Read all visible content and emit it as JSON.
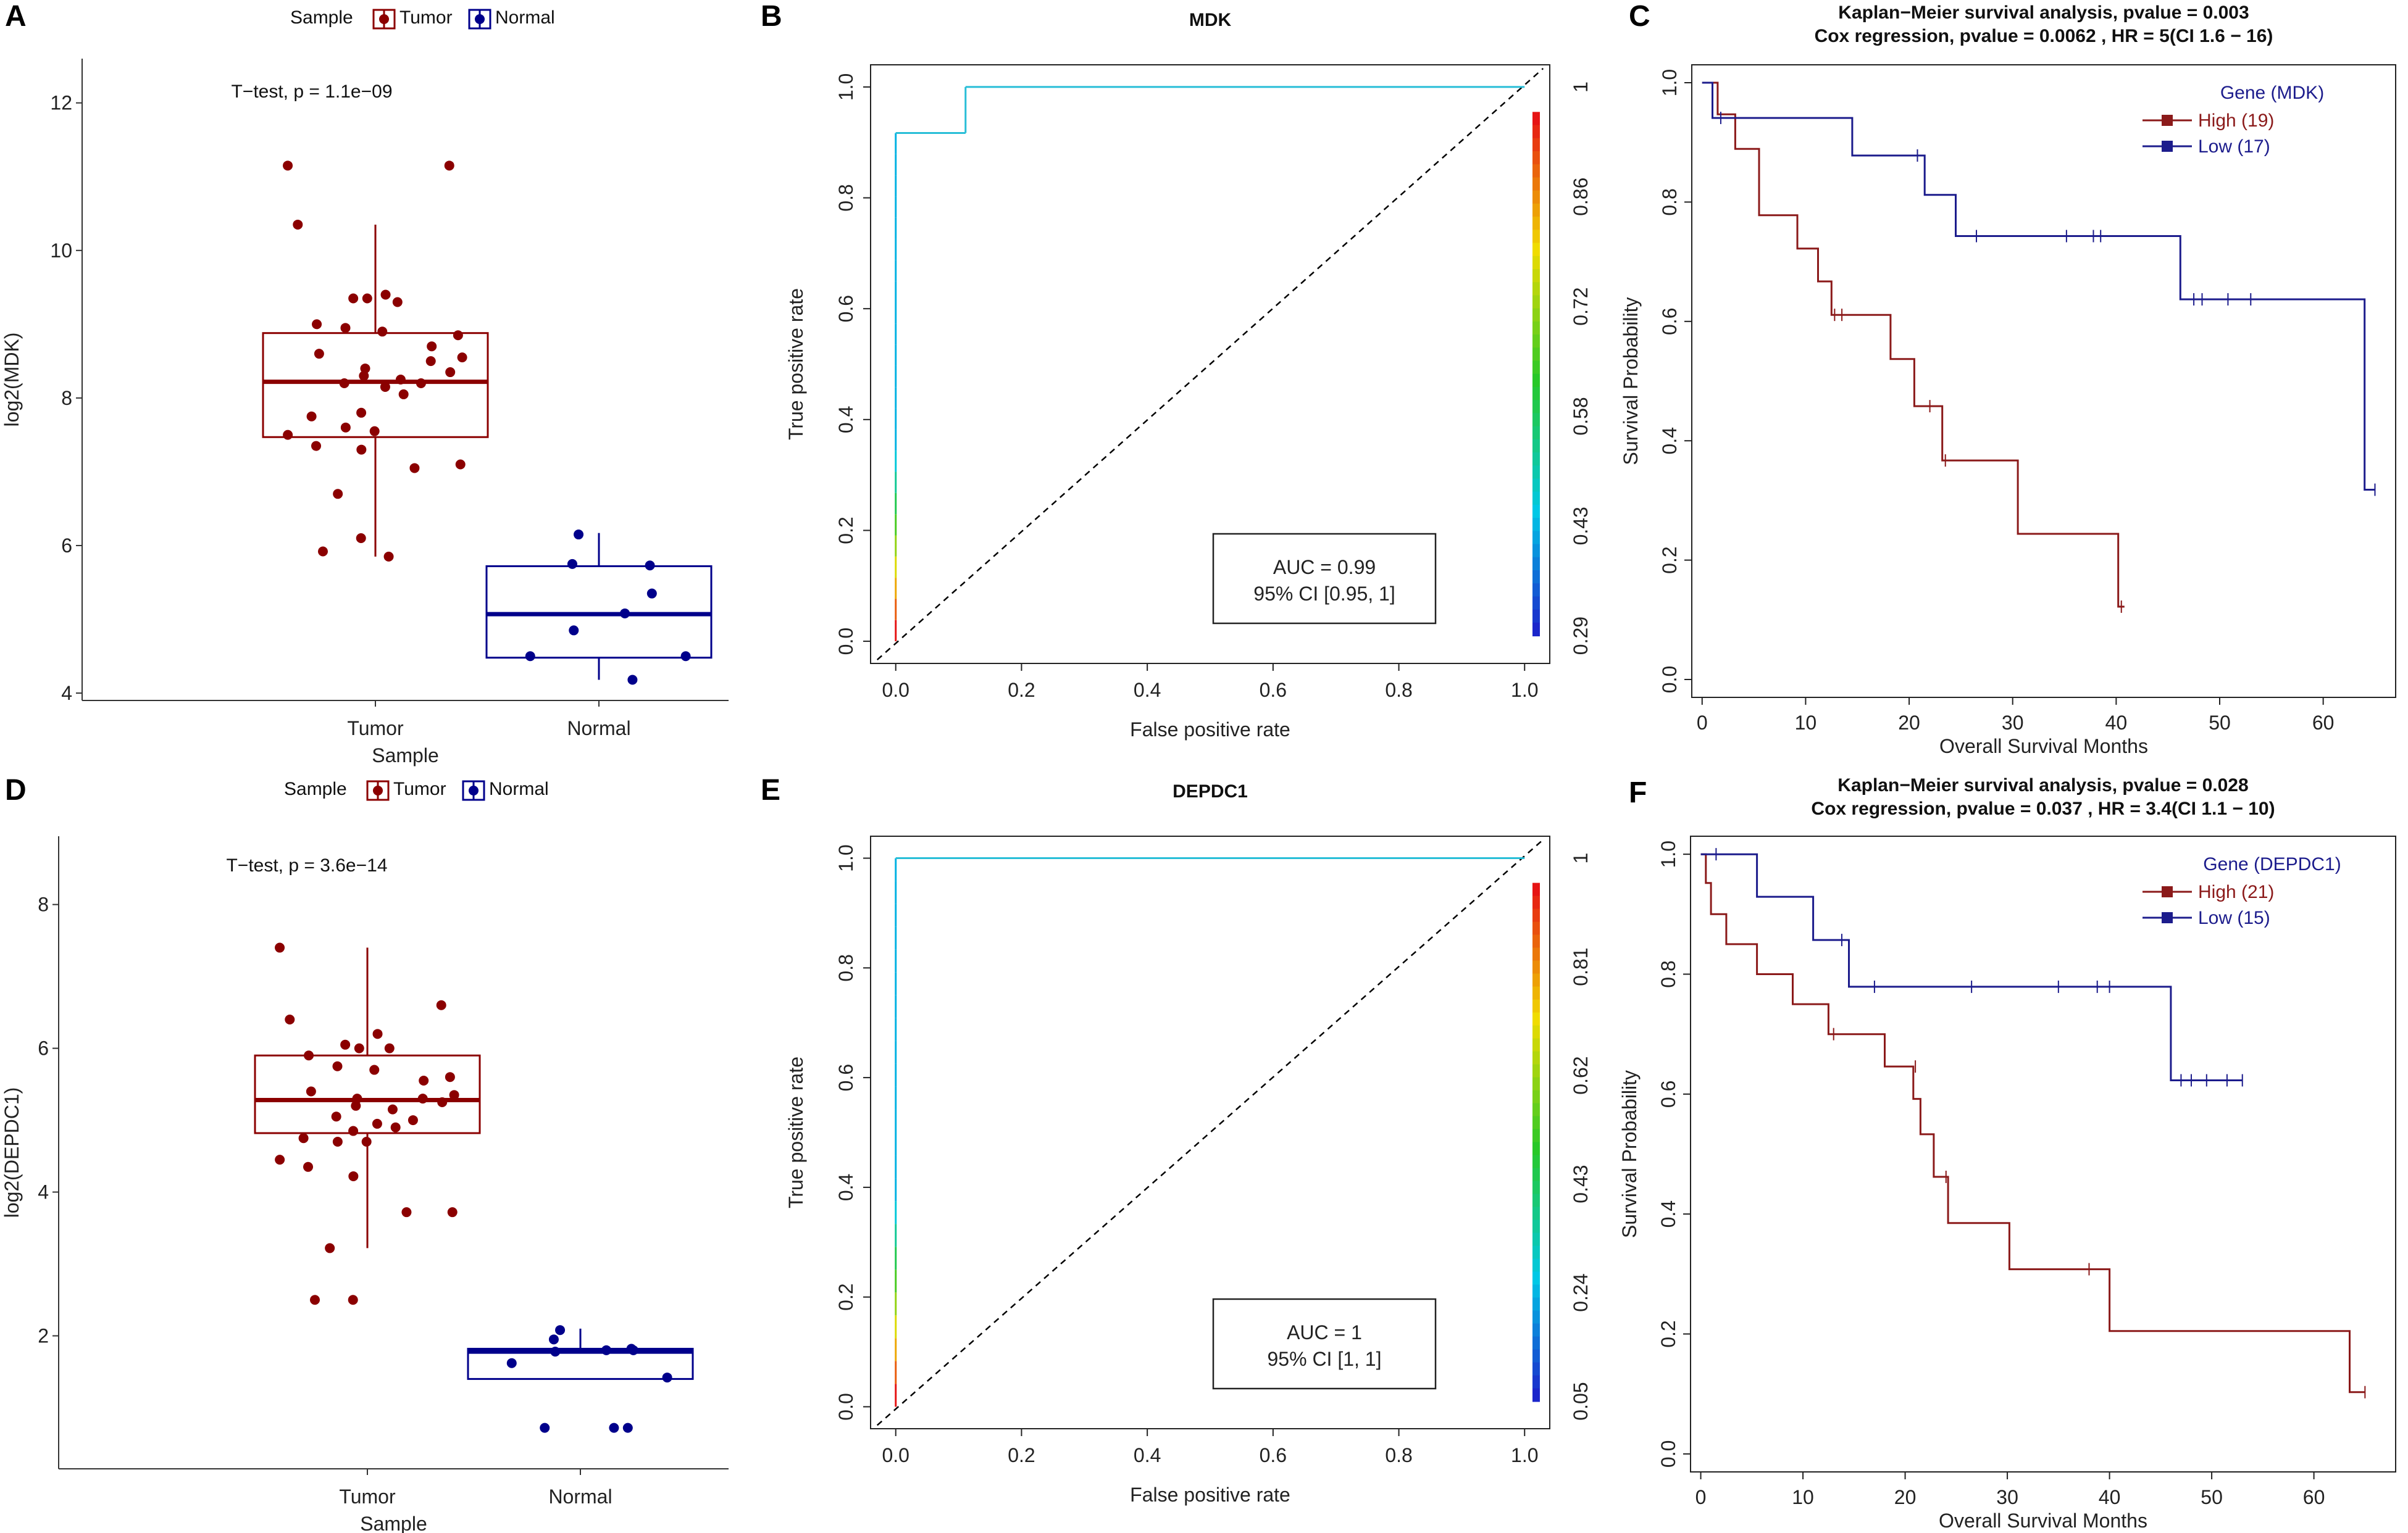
{
  "figure": {
    "background": "#ffffff"
  },
  "colors": {
    "tumor": "#8B0000",
    "normal": "#00008B",
    "high": "#8B1A1A",
    "low": "#1C1C8C",
    "diag": "#000000"
  },
  "chart_data": [
    {
      "id": "A",
      "type": "boxplot",
      "panel_label": "A",
      "legend_title": "Sample",
      "legend_entries": [
        "Tumor",
        "Normal"
      ],
      "annotation": "T−test, p = 1.1e−09",
      "xlabel": "Sample",
      "ylabel": "log2(MDK)",
      "categories": [
        "Tumor",
        "Normal"
      ],
      "ylim": [
        3.9,
        12.6
      ],
      "yticks": [
        4,
        6,
        8,
        10,
        12
      ],
      "series": [
        {
          "name": "Tumor",
          "q1": 7.47,
          "median": 8.22,
          "q3": 8.88,
          "whisker_low": 5.85,
          "whisker_high": 10.35,
          "points": [
            11.15,
            11.15,
            10.35,
            9.4,
            9.35,
            9.35,
            9.3,
            9.0,
            8.95,
            8.9,
            8.85,
            8.7,
            8.6,
            8.55,
            8.5,
            8.4,
            8.35,
            8.3,
            8.25,
            8.2,
            8.2,
            8.15,
            8.05,
            7.8,
            7.75,
            7.6,
            7.55,
            7.5,
            7.35,
            7.3,
            7.1,
            7.05,
            6.7,
            6.1,
            5.92,
            5.85
          ]
        },
        {
          "name": "Normal",
          "q1": 4.48,
          "median": 5.07,
          "q3": 5.72,
          "whisker_low": 4.18,
          "whisker_high": 6.17,
          "points": [
            6.15,
            5.75,
            5.73,
            5.35,
            5.08,
            4.85,
            4.5,
            4.5,
            4.18
          ]
        }
      ]
    },
    {
      "id": "B",
      "type": "roc",
      "panel_label": "B",
      "title": "MDK",
      "xlabel": "False positive rate",
      "ylabel": "True positive rate",
      "xlim": [
        -0.04,
        1.04
      ],
      "ylim": [
        -0.04,
        1.04
      ],
      "ticks": [
        0.0,
        0.2,
        0.4,
        0.6,
        0.8,
        1.0
      ],
      "tick_labels": [
        "0.0",
        "0.2",
        "0.4",
        "0.6",
        "0.8",
        "1.0"
      ],
      "fpr": [
        0,
        0,
        0.111,
        0.111,
        1
      ],
      "tpr": [
        0,
        0.917,
        0.917,
        1,
        1
      ],
      "auc_label": "AUC = 0.99",
      "ci_label": "95% CI [0.95, 1]",
      "colorbar_labels": [
        "1",
        "0.86",
        "0.72",
        "0.58",
        "0.43",
        "0.29"
      ]
    },
    {
      "id": "C",
      "type": "line",
      "subtype": "kaplan-meier",
      "panel_label": "C",
      "title_line1": "Kaplan−Meier survival analysis, pvalue =  0.003",
      "title_line2": "Cox regression,  pvalue =  0.0062 , HR =  5(CI 1.6 − 16)",
      "xlabel": "Overall Survival Months",
      "ylabel": "Survival Probability",
      "xlim": [
        -1,
        67
      ],
      "ylim": [
        -0.03,
        1.03
      ],
      "xticks": [
        0,
        10,
        20,
        30,
        40,
        50,
        60
      ],
      "yticks": [
        0.0,
        0.2,
        0.4,
        0.6,
        0.8,
        1.0
      ],
      "legend_title": "Gene (MDK)",
      "series": [
        {
          "name": "High (19)",
          "steps": [
            [
              0,
              1.0
            ],
            [
              1.5,
              1.0
            ],
            [
              1.5,
              0.947
            ],
            [
              3.2,
              0.947
            ],
            [
              3.2,
              0.889
            ],
            [
              5.5,
              0.889
            ],
            [
              5.5,
              0.778
            ],
            [
              9.2,
              0.778
            ],
            [
              9.2,
              0.722
            ],
            [
              11.2,
              0.722
            ],
            [
              11.2,
              0.667
            ],
            [
              12.5,
              0.667
            ],
            [
              12.5,
              0.611
            ],
            [
              18.2,
              0.611
            ],
            [
              18.2,
              0.537
            ],
            [
              20.5,
              0.537
            ],
            [
              20.5,
              0.458
            ],
            [
              23.2,
              0.458
            ],
            [
              23.2,
              0.367
            ],
            [
              30.5,
              0.367
            ],
            [
              30.5,
              0.244
            ],
            [
              40.2,
              0.244
            ],
            [
              40.2,
              0.122
            ],
            [
              40.8,
              0.122
            ]
          ],
          "censors": [
            [
              12.8,
              0.611
            ],
            [
              13.5,
              0.611
            ],
            [
              22.0,
              0.458
            ],
            [
              23.5,
              0.367
            ],
            [
              40.5,
              0.122
            ]
          ]
        },
        {
          "name": "Low (17)",
          "steps": [
            [
              0,
              1.0
            ],
            [
              1.0,
              1.0
            ],
            [
              1.0,
              0.941
            ],
            [
              14.5,
              0.941
            ],
            [
              14.5,
              0.878
            ],
            [
              21.5,
              0.878
            ],
            [
              21.5,
              0.812
            ],
            [
              24.5,
              0.812
            ],
            [
              24.5,
              0.743
            ],
            [
              46.2,
              0.743
            ],
            [
              46.2,
              0.637
            ],
            [
              64.0,
              0.637
            ],
            [
              64.0,
              0.318
            ],
            [
              65.0,
              0.318
            ]
          ],
          "censors": [
            [
              1.8,
              0.941
            ],
            [
              20.8,
              0.878
            ],
            [
              26.5,
              0.743
            ],
            [
              35.2,
              0.743
            ],
            [
              37.8,
              0.743
            ],
            [
              38.5,
              0.743
            ],
            [
              47.5,
              0.637
            ],
            [
              48.3,
              0.637
            ],
            [
              50.8,
              0.637
            ],
            [
              53.0,
              0.637
            ],
            [
              65.0,
              0.318
            ]
          ]
        }
      ]
    },
    {
      "id": "D",
      "type": "boxplot",
      "panel_label": "D",
      "legend_title": "Sample",
      "legend_entries": [
        "Tumor",
        "Normal"
      ],
      "annotation": "T−test, p = 3.6e−14",
      "xlabel": "Sample",
      "ylabel": "log2(DEPDC1)",
      "categories": [
        "Tumor",
        "Normal"
      ],
      "ylim": [
        0.15,
        8.95
      ],
      "yticks": [
        2,
        4,
        6,
        8
      ],
      "series": [
        {
          "name": "Tumor",
          "q1": 4.82,
          "median": 5.28,
          "q3": 5.9,
          "whisker_low": 3.22,
          "whisker_high": 7.4,
          "points": [
            7.4,
            6.6,
            6.4,
            6.2,
            6.05,
            6.0,
            6.0,
            5.9,
            5.75,
            5.7,
            5.6,
            5.55,
            5.4,
            5.35,
            5.3,
            5.3,
            5.25,
            5.2,
            5.15,
            5.05,
            5.0,
            4.95,
            4.9,
            4.85,
            4.75,
            4.7,
            4.7,
            4.45,
            4.35,
            4.22,
            3.72,
            3.72,
            3.22,
            2.5,
            2.5
          ]
        },
        {
          "name": "Normal",
          "q1": 1.4,
          "median": 1.78,
          "q3": 1.82,
          "whisker_low": 1.4,
          "whisker_high": 2.1,
          "points": [
            2.08,
            1.95,
            1.82,
            1.8,
            1.8,
            1.78,
            1.62,
            1.42,
            0.72,
            0.72,
            0.72
          ]
        }
      ]
    },
    {
      "id": "E",
      "type": "roc",
      "panel_label": "E",
      "title": "DEPDC1",
      "xlabel": "False positive rate",
      "ylabel": "True positive rate",
      "xlim": [
        -0.04,
        1.04
      ],
      "ylim": [
        -0.04,
        1.04
      ],
      "ticks": [
        0.0,
        0.2,
        0.4,
        0.6,
        0.8,
        1.0
      ],
      "tick_labels": [
        "0.0",
        "0.2",
        "0.4",
        "0.6",
        "0.8",
        "1.0"
      ],
      "fpr": [
        0,
        0,
        1
      ],
      "tpr": [
        0,
        1,
        1
      ],
      "auc_label": "AUC = 1",
      "ci_label": "95% CI [1, 1]",
      "colorbar_labels": [
        "1",
        "0.81",
        "0.62",
        "0.43",
        "0.24",
        "0.05"
      ]
    },
    {
      "id": "F",
      "type": "line",
      "subtype": "kaplan-meier",
      "panel_label": "F",
      "title_line1": "Kaplan−Meier survival analysis, pvalue =  0.028",
      "title_line2": "Cox regression,  pvalue =  0.037 , HR =  3.4(CI 1.1 − 10)",
      "xlabel": "Overall Survival Months",
      "ylabel": "Survival Probability",
      "xlim": [
        -1,
        68
      ],
      "ylim": [
        -0.03,
        1.03
      ],
      "xticks": [
        0,
        10,
        20,
        30,
        40,
        50,
        60
      ],
      "yticks": [
        0.0,
        0.2,
        0.4,
        0.6,
        0.8,
        1.0
      ],
      "legend_title": "Gene (DEPDC1)",
      "series": [
        {
          "name": "High (21)",
          "steps": [
            [
              0,
              1.0
            ],
            [
              0.5,
              1.0
            ],
            [
              0.5,
              0.952
            ],
            [
              1.0,
              0.952
            ],
            [
              1.0,
              0.9
            ],
            [
              2.5,
              0.9
            ],
            [
              2.5,
              0.85
            ],
            [
              5.5,
              0.85
            ],
            [
              5.5,
              0.8
            ],
            [
              9.0,
              0.8
            ],
            [
              9.0,
              0.75
            ],
            [
              12.5,
              0.75
            ],
            [
              12.5,
              0.7
            ],
            [
              18.0,
              0.7
            ],
            [
              18.0,
              0.646
            ],
            [
              20.8,
              0.646
            ],
            [
              20.8,
              0.592
            ],
            [
              21.5,
              0.592
            ],
            [
              21.5,
              0.533
            ],
            [
              22.8,
              0.533
            ],
            [
              22.8,
              0.462
            ],
            [
              24.2,
              0.462
            ],
            [
              24.2,
              0.385
            ],
            [
              30.2,
              0.385
            ],
            [
              30.2,
              0.308
            ],
            [
              40.0,
              0.308
            ],
            [
              40.0,
              0.205
            ],
            [
              63.5,
              0.205
            ],
            [
              63.5,
              0.103
            ],
            [
              65.0,
              0.103
            ]
          ],
          "censors": [
            [
              13.0,
              0.7
            ],
            [
              21.0,
              0.646
            ],
            [
              24.0,
              0.462
            ],
            [
              38.0,
              0.308
            ],
            [
              65.0,
              0.103
            ]
          ]
        },
        {
          "name": "Low (15)",
          "steps": [
            [
              0,
              1.0
            ],
            [
              5.5,
              1.0
            ],
            [
              5.5,
              0.929
            ],
            [
              11.0,
              0.929
            ],
            [
              11.0,
              0.857
            ],
            [
              14.5,
              0.857
            ],
            [
              14.5,
              0.779
            ],
            [
              46.0,
              0.779
            ],
            [
              46.0,
              0.623
            ],
            [
              53.0,
              0.623
            ]
          ],
          "censors": [
            [
              1.5,
              1.0
            ],
            [
              13.8,
              0.857
            ],
            [
              17.0,
              0.779
            ],
            [
              26.5,
              0.779
            ],
            [
              35.0,
              0.779
            ],
            [
              38.8,
              0.779
            ],
            [
              40.0,
              0.779
            ],
            [
              47.0,
              0.623
            ],
            [
              48.0,
              0.623
            ],
            [
              49.5,
              0.623
            ],
            [
              51.5,
              0.623
            ],
            [
              53.0,
              0.623
            ]
          ]
        }
      ]
    }
  ]
}
